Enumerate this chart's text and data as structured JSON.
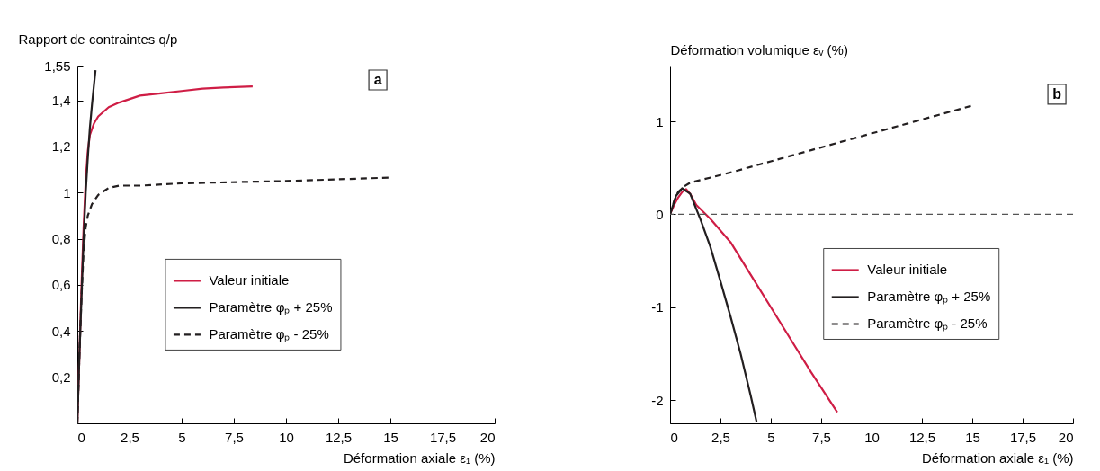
{
  "chart_data": [
    {
      "type": "line",
      "ylabel": "Rapport de contraintes q/p",
      "xlabel": "Déformation axiale ε₁ (%)",
      "annotations": [
        "a"
      ],
      "legend": "bottom",
      "xlim": [
        0,
        20
      ],
      "xticks": [
        0,
        {
          "value": 2.5,
          "label": "2,5"
        },
        5,
        {
          "value": 7.5,
          "label": "7,5"
        },
        10,
        {
          "value": 12.5,
          "label": "12,5"
        },
        15,
        {
          "value": 17.5,
          "label": "17,5"
        },
        20
      ],
      "ylim": [
        0,
        1.55
      ],
      "yticks": [
        {
          "value": 0.2,
          "label": "0,2"
        },
        {
          "value": 0.4,
          "label": "0,4"
        },
        {
          "value": 0.6,
          "label": "0,6"
        },
        {
          "value": 0.8,
          "label": "0,8"
        },
        1,
        {
          "value": 1.2,
          "label": "1,2"
        },
        {
          "value": 1.4,
          "label": "1,4"
        },
        {
          "value": 1.55,
          "label": "1,55"
        }
      ],
      "series": [
        {
          "name": "Valeur initiale",
          "color": "#cf1d45",
          "line_style": "solid",
          "x": [
            0,
            0.1,
            0.2,
            0.3,
            0.4,
            0.5,
            0.6,
            0.8,
            1,
            1.5,
            2,
            3,
            4,
            5,
            6,
            7,
            8.4
          ],
          "values": [
            0,
            0.3,
            0.6,
            0.85,
            1.05,
            1.18,
            1.25,
            1.3,
            1.33,
            1.37,
            1.39,
            1.42,
            1.43,
            1.44,
            1.45,
            1.455,
            1.46
          ]
        },
        {
          "name": "Paramètre φₚ + 25%",
          "color": "#231f20",
          "line_style": "solid",
          "x": [
            0,
            0.1,
            0.2,
            0.3,
            0.4,
            0.5,
            0.6,
            0.7,
            0.8,
            0.87
          ],
          "values": [
            0,
            0.3,
            0.55,
            0.8,
            1.0,
            1.15,
            1.28,
            1.38,
            1.47,
            1.53
          ]
        },
        {
          "name": "Paramètre φₚ - 25%",
          "color": "#231f20",
          "line_style": "dashed",
          "x": [
            0,
            0.1,
            0.2,
            0.3,
            0.4,
            0.5,
            0.7,
            1,
            1.5,
            2,
            3,
            5,
            10,
            15
          ],
          "values": [
            0,
            0.3,
            0.55,
            0.75,
            0.85,
            0.9,
            0.95,
            0.99,
            1.02,
            1.03,
            1.03,
            1.04,
            1.05,
            1.065
          ]
        }
      ]
    },
    {
      "type": "line",
      "ylabel": "Déformation volumique εᵥ (%)",
      "xlabel": "Déformation axiale ε₁ (%)",
      "annotations": [
        "b"
      ],
      "legend": "right",
      "xlim": [
        0,
        20
      ],
      "xticks": [
        0,
        {
          "value": 2.5,
          "label": "2,5"
        },
        5,
        {
          "value": 7.5,
          "label": "7,5"
        },
        10,
        {
          "value": 12.5,
          "label": "12,5"
        },
        15,
        {
          "value": 17.5,
          "label": "17,5"
        },
        20
      ],
      "ylim": [
        -2.25,
        1.6
      ],
      "yticks": [
        -2,
        -1,
        0,
        1
      ],
      "ref_lines": [
        {
          "axis": "y",
          "value": 0,
          "color": "#555555",
          "line_style": "dashed"
        }
      ],
      "series": [
        {
          "name": "Valeur initiale",
          "color": "#cf1d45",
          "line_style": "solid",
          "x": [
            0,
            0.2,
            0.4,
            0.6,
            0.8,
            1,
            1.3,
            2,
            3,
            4,
            5,
            6,
            7,
            8.3
          ],
          "values": [
            0,
            0.1,
            0.18,
            0.24,
            0.27,
            0.22,
            0.1,
            -0.05,
            -0.3,
            -0.65,
            -1.0,
            -1.35,
            -1.7,
            -2.13
          ]
        },
        {
          "name": "Paramètre φₚ + 25%",
          "color": "#231f20",
          "line_style": "solid",
          "x": [
            0,
            0.3,
            0.6,
            1,
            1.5,
            2,
            2.5,
            3,
            3.5,
            4,
            4.3
          ],
          "values": [
            0,
            0.2,
            0.28,
            0.22,
            -0.05,
            -0.35,
            -0.72,
            -1.1,
            -1.5,
            -1.95,
            -2.24
          ]
        },
        {
          "name": "Paramètre φₚ - 25%",
          "color": "#231f20",
          "line_style": "dashed",
          "x": [
            0,
            0.2,
            0.4,
            0.7,
            1,
            3,
            5,
            7,
            9,
            11,
            13,
            15
          ],
          "values": [
            0,
            0.14,
            0.24,
            0.3,
            0.34,
            0.45,
            0.57,
            0.69,
            0.81,
            0.93,
            1.05,
            1.17
          ]
        }
      ]
    }
  ]
}
